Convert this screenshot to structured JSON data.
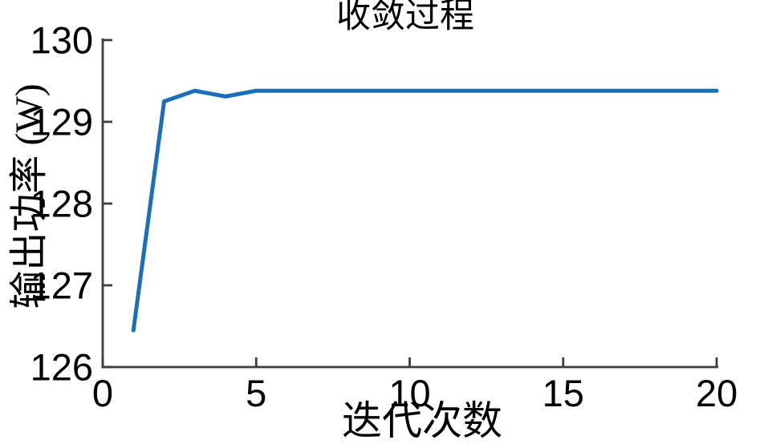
{
  "figure": {
    "background_color": "#ffffff",
    "axis_color": "#3d3d3d",
    "text_color": "#000000"
  },
  "chart_data": {
    "type": "line",
    "title": "收敛过程",
    "xlabel": "迭代次数",
    "ylabel": "输出功率 (W)",
    "x": [
      1,
      2,
      3,
      4,
      5,
      6,
      7,
      8,
      9,
      10,
      11,
      12,
      13,
      14,
      15,
      16,
      17,
      18,
      19,
      20
    ],
    "y": [
      126.45,
      129.25,
      129.38,
      129.31,
      129.38,
      129.38,
      129.38,
      129.38,
      129.38,
      129.38,
      129.38,
      129.38,
      129.38,
      129.38,
      129.38,
      129.38,
      129.38,
      129.38,
      129.38,
      129.38
    ],
    "series": [
      {
        "name": "输出功率",
        "values": [
          126.45,
          129.25,
          129.38,
          129.31,
          129.38,
          129.38,
          129.38,
          129.38,
          129.38,
          129.38,
          129.38,
          129.38,
          129.38,
          129.38,
          129.38,
          129.38,
          129.38,
          129.38,
          129.38,
          129.38
        ]
      }
    ],
    "xlim": [
      0,
      20
    ],
    "ylim": [
      126,
      130
    ],
    "x_ticks": [
      0,
      5,
      10,
      15,
      20
    ],
    "y_ticks": [
      126,
      127,
      128,
      129,
      130
    ],
    "grid": false,
    "legend": null,
    "line_color": "#1b6fb8",
    "line_width": 5
  }
}
